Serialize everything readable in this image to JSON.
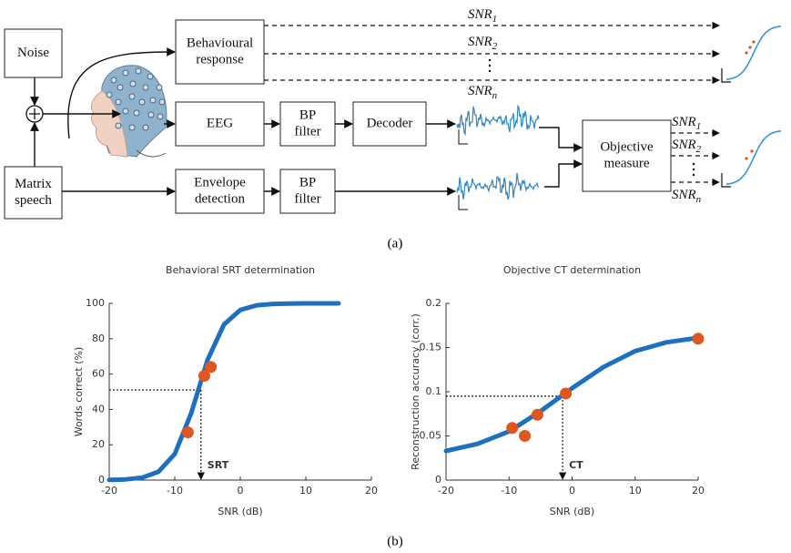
{
  "diagram": {
    "nodes": {
      "noise": [
        "Noise"
      ],
      "matrix": [
        "Matrix",
        "speech"
      ],
      "behav": [
        "Behavioural",
        "response"
      ],
      "eeg": [
        "EEG"
      ],
      "bp1": [
        "BP",
        "filter"
      ],
      "decoder": [
        "Decoder"
      ],
      "env": [
        "Envelope",
        "detection"
      ],
      "bp2": [
        "BP",
        "filter"
      ],
      "objective": [
        "Objective",
        "measure"
      ]
    },
    "snr_top": [
      {
        "text": "SNR",
        "sub": "1"
      },
      {
        "text": "SNR",
        "sub": "2"
      },
      {
        "text": "SNR",
        "sub": "n"
      }
    ],
    "snr_right": [
      {
        "text": "SNR",
        "sub": "1"
      },
      {
        "text": "SNR",
        "sub": "2"
      },
      {
        "text": "SNR",
        "sub": "n"
      }
    ],
    "caption": "(a)"
  },
  "chart_data": [
    {
      "type": "line",
      "title": "Behavioral SRT determination",
      "x_label": "SNR (dB)",
      "y_label": "Words correct (%)",
      "xlim": [
        -20,
        20
      ],
      "ylim": [
        0,
        100
      ],
      "xticks": [
        -20,
        -10,
        0,
        10,
        20
      ],
      "yticks": [
        0,
        20,
        40,
        60,
        80,
        100
      ],
      "curve": {
        "color": "#1f6fbf",
        "x": [
          -20,
          -17.5,
          -15,
          -12.5,
          -10,
          -7.5,
          -5,
          -2.5,
          0,
          2.5,
          5,
          7.5,
          10,
          12.5,
          15
        ],
        "y": [
          0.1,
          0.4,
          1.4,
          4.7,
          14.8,
          37.8,
          68,
          88,
          96.3,
          98.9,
          99.7,
          99.9,
          100,
          100,
          100
        ]
      },
      "points": {
        "color": "#e0561f",
        "x": [
          -8,
          -5.5,
          -4.5
        ],
        "y": [
          27,
          59,
          64
        ]
      },
      "threshold": {
        "label": "SRT",
        "x": -6,
        "y": 51
      }
    },
    {
      "type": "line",
      "title": "Objective CT determination",
      "x_label": "SNR (dB)",
      "y_label": "Reconstruction accuracy (corr.)",
      "xlim": [
        -20,
        20
      ],
      "ylim": [
        0,
        0.2
      ],
      "xticks": [
        -20,
        -10,
        0,
        10,
        20
      ],
      "yticks": [
        0,
        0.05,
        0.1,
        0.15,
        0.2
      ],
      "curve": {
        "color": "#1f6fbf",
        "x": [
          -20,
          -15,
          -10,
          -5,
          0,
          5,
          10,
          15,
          20
        ],
        "y": [
          0.033,
          0.041,
          0.055,
          0.078,
          0.104,
          0.128,
          0.146,
          0.156,
          0.161
        ]
      },
      "points": {
        "color": "#e0561f",
        "x": [
          -9.5,
          -7.5,
          -5.5,
          -1,
          20
        ],
        "y": [
          0.059,
          0.05,
          0.074,
          0.098,
          0.16
        ]
      },
      "threshold": {
        "label": "CT",
        "x": -1.5,
        "y": 0.095
      }
    }
  ],
  "caption_b": "(b)"
}
